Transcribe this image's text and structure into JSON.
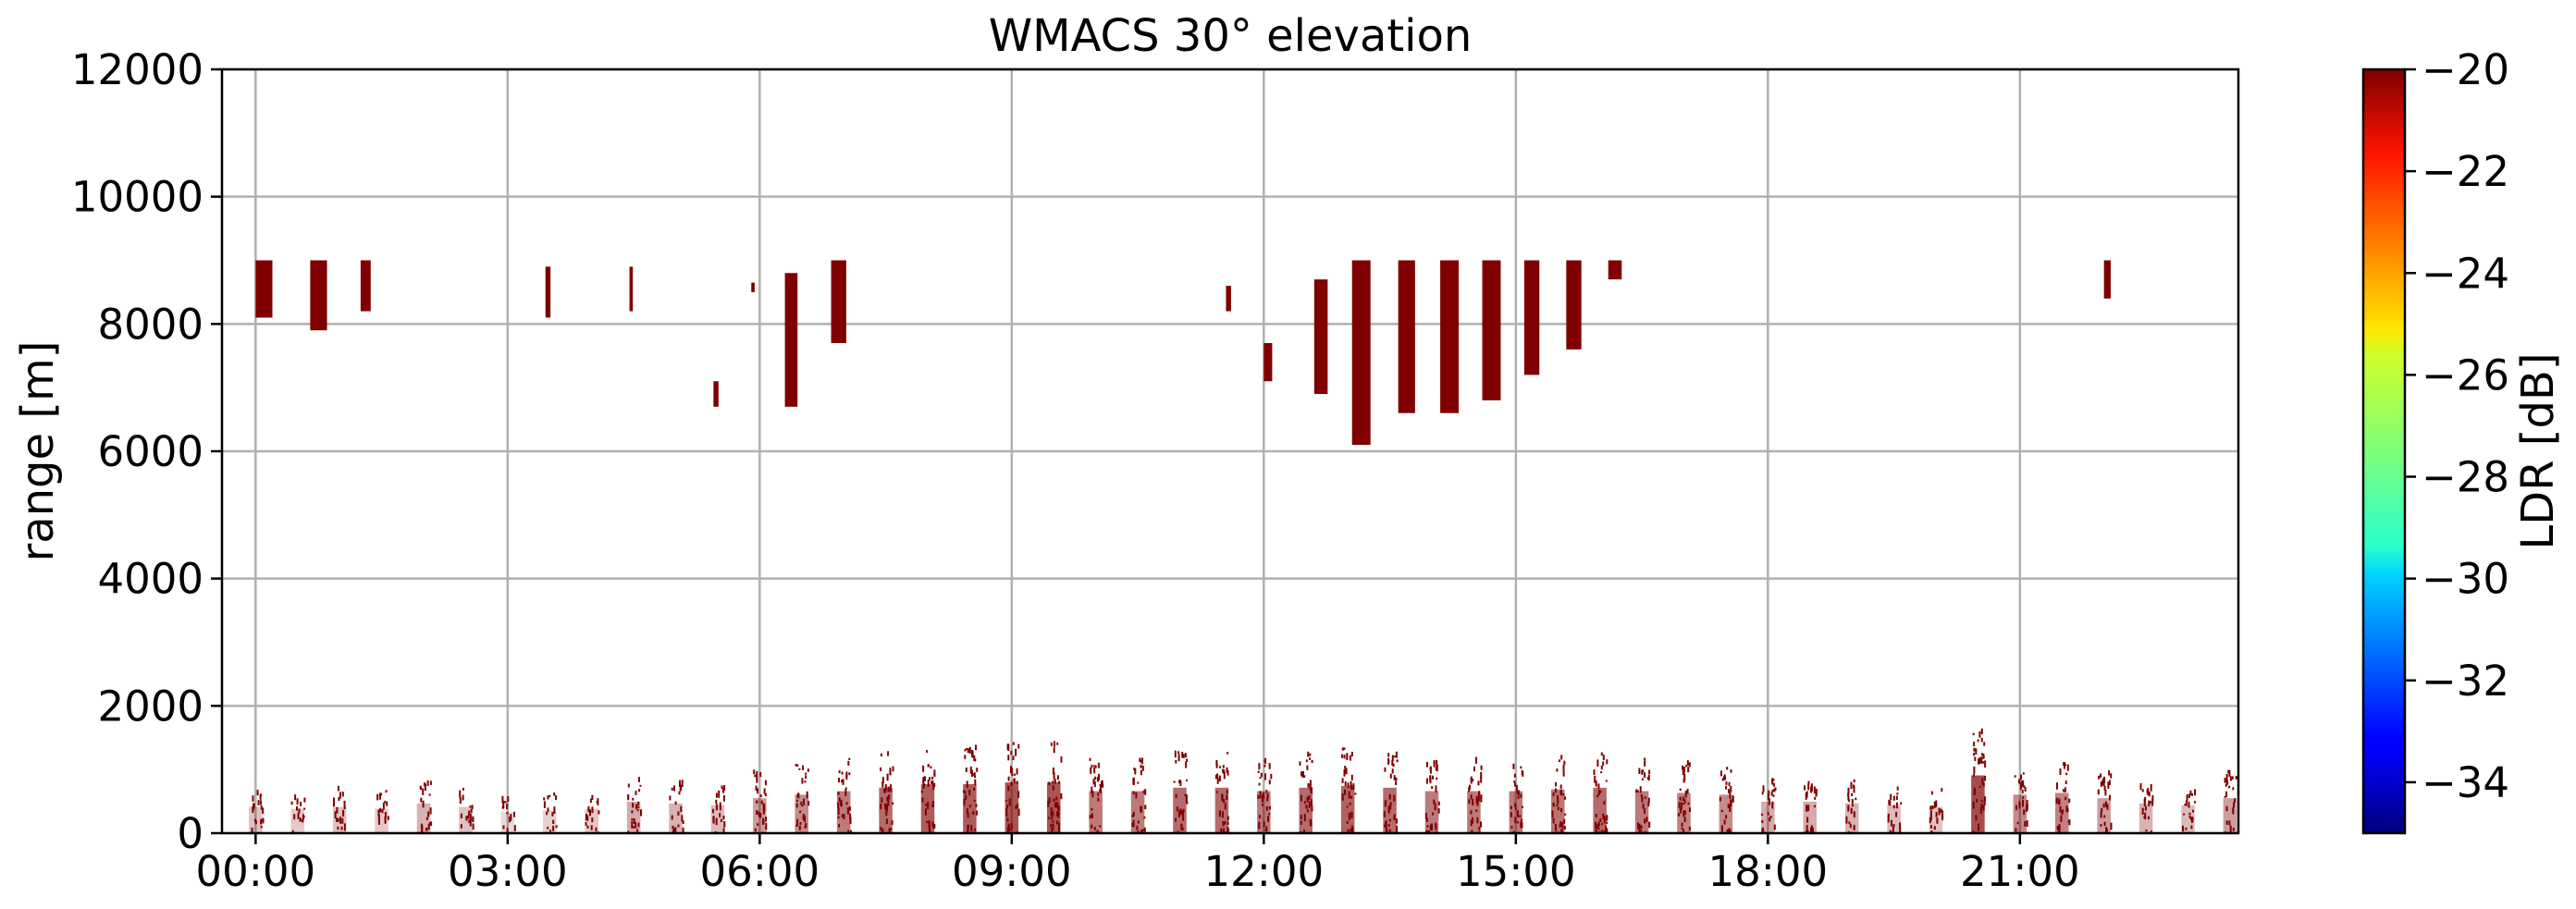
{
  "chart_data": {
    "type": "heatmap",
    "title": "WMACS 30° elevation",
    "xlabel": "",
    "ylabel": "range [m]",
    "x_unit": "hours",
    "xlim": [
      -0.4,
      23.6
    ],
    "ylim": [
      0,
      12000
    ],
    "x_ticks": [
      {
        "value": 0,
        "label": "00:00"
      },
      {
        "value": 3,
        "label": "03:00"
      },
      {
        "value": 6,
        "label": "06:00"
      },
      {
        "value": 9,
        "label": "09:00"
      },
      {
        "value": 12,
        "label": "12:00"
      },
      {
        "value": 15,
        "label": "15:00"
      },
      {
        "value": 18,
        "label": "18:00"
      },
      {
        "value": 21,
        "label": "21:00"
      }
    ],
    "y_ticks": [
      0,
      2000,
      4000,
      6000,
      8000,
      10000,
      12000
    ],
    "grid": true,
    "colorbar": {
      "label": "LDR [dB]",
      "colormap": "jet",
      "range": [
        -35,
        -20
      ],
      "ticks": [
        -20,
        -22,
        -24,
        -26,
        -28,
        -30,
        -32,
        -34
      ]
    },
    "upper_echoes_ldr_db": -20,
    "upper_echoes": [
      {
        "t": 0.0,
        "w": 0.2,
        "y0": 8100,
        "y1": 9000
      },
      {
        "t": 0.65,
        "w": 0.2,
        "y0": 7900,
        "y1": 9000
      },
      {
        "t": 1.25,
        "w": 0.12,
        "y0": 8200,
        "y1": 9000
      },
      {
        "t": 3.45,
        "w": 0.06,
        "y0": 8100,
        "y1": 8900
      },
      {
        "t": 4.45,
        "w": 0.04,
        "y0": 8200,
        "y1": 8900
      },
      {
        "t": 5.45,
        "w": 0.06,
        "y0": 6700,
        "y1": 7100
      },
      {
        "t": 5.9,
        "w": 0.04,
        "y0": 8500,
        "y1": 8650
      },
      {
        "t": 6.3,
        "w": 0.15,
        "y0": 6700,
        "y1": 8800
      },
      {
        "t": 6.85,
        "w": 0.18,
        "y0": 7700,
        "y1": 9000
      },
      {
        "t": 11.55,
        "w": 0.06,
        "y0": 8200,
        "y1": 8600
      },
      {
        "t": 12.0,
        "w": 0.1,
        "y0": 7100,
        "y1": 7700
      },
      {
        "t": 12.6,
        "w": 0.16,
        "y0": 6900,
        "y1": 8700
      },
      {
        "t": 13.05,
        "w": 0.22,
        "y0": 6100,
        "y1": 9000
      },
      {
        "t": 13.6,
        "w": 0.2,
        "y0": 6600,
        "y1": 9000
      },
      {
        "t": 14.1,
        "w": 0.22,
        "y0": 6600,
        "y1": 9000
      },
      {
        "t": 14.6,
        "w": 0.22,
        "y0": 6800,
        "y1": 9000
      },
      {
        "t": 15.1,
        "w": 0.18,
        "y0": 7200,
        "y1": 9000
      },
      {
        "t": 15.6,
        "w": 0.18,
        "y0": 7600,
        "y1": 9000
      },
      {
        "t": 16.1,
        "w": 0.16,
        "y0": 8700,
        "y1": 9000
      },
      {
        "t": 22.0,
        "w": 0.08,
        "y0": 8400,
        "y1": 9000
      }
    ],
    "boundary_layer_ldr_db": -20,
    "boundary_layer_columns": [
      {
        "t": 0.0,
        "top": 750
      },
      {
        "t": 0.5,
        "top": 700
      },
      {
        "t": 1.0,
        "top": 750
      },
      {
        "t": 1.5,
        "top": 700
      },
      {
        "t": 2.0,
        "top": 850
      },
      {
        "t": 2.5,
        "top": 750
      },
      {
        "t": 3.0,
        "top": 600
      },
      {
        "t": 3.5,
        "top": 650
      },
      {
        "t": 4.0,
        "top": 700
      },
      {
        "t": 4.5,
        "top": 900
      },
      {
        "t": 5.0,
        "top": 850
      },
      {
        "t": 5.5,
        "top": 800
      },
      {
        "t": 6.0,
        "top": 1000
      },
      {
        "t": 6.5,
        "top": 1100
      },
      {
        "t": 7.0,
        "top": 1200
      },
      {
        "t": 7.5,
        "top": 1300
      },
      {
        "t": 8.0,
        "top": 1400
      },
      {
        "t": 8.5,
        "top": 1400
      },
      {
        "t": 9.0,
        "top": 1450
      },
      {
        "t": 9.5,
        "top": 1450
      },
      {
        "t": 10.0,
        "top": 1200
      },
      {
        "t": 10.5,
        "top": 1200
      },
      {
        "t": 11.0,
        "top": 1300
      },
      {
        "t": 11.5,
        "top": 1300
      },
      {
        "t": 12.0,
        "top": 1200
      },
      {
        "t": 12.5,
        "top": 1300
      },
      {
        "t": 13.0,
        "top": 1350
      },
      {
        "t": 13.5,
        "top": 1300
      },
      {
        "t": 14.0,
        "top": 1200
      },
      {
        "t": 14.5,
        "top": 1200
      },
      {
        "t": 15.0,
        "top": 1200
      },
      {
        "t": 15.5,
        "top": 1250
      },
      {
        "t": 16.0,
        "top": 1300
      },
      {
        "t": 16.5,
        "top": 1200
      },
      {
        "t": 17.0,
        "top": 1150
      },
      {
        "t": 17.5,
        "top": 1100
      },
      {
        "t": 18.0,
        "top": 900
      },
      {
        "t": 18.5,
        "top": 900
      },
      {
        "t": 19.0,
        "top": 850
      },
      {
        "t": 19.5,
        "top": 800
      },
      {
        "t": 20.0,
        "top": 750
      },
      {
        "t": 20.5,
        "top": 1650
      },
      {
        "t": 21.0,
        "top": 1100
      },
      {
        "t": 21.5,
        "top": 1150
      },
      {
        "t": 22.0,
        "top": 1000
      },
      {
        "t": 22.5,
        "top": 850
      },
      {
        "t": 23.0,
        "top": 800
      },
      {
        "t": 23.5,
        "top": 1000
      }
    ]
  }
}
